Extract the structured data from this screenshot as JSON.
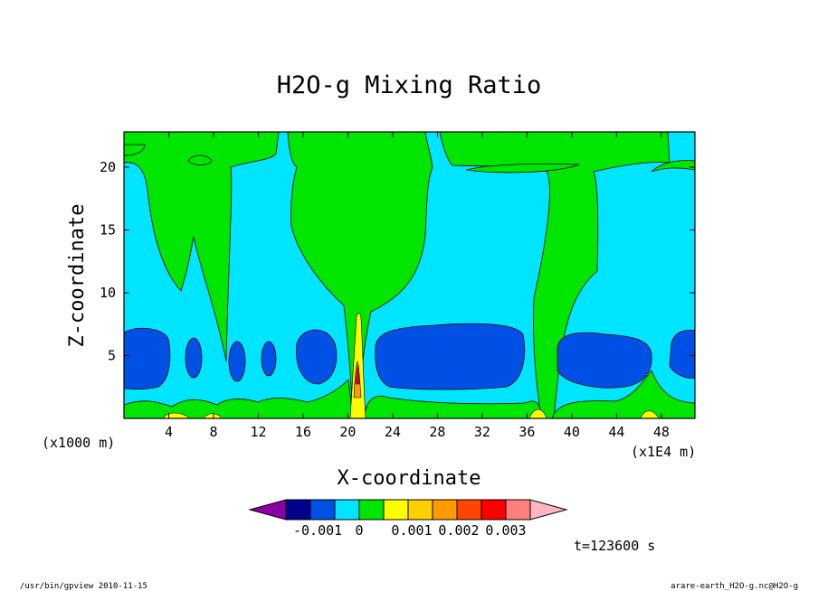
{
  "chart_data": {
    "type": "heatmap",
    "title": "H2O-g Mixing Ratio",
    "xlabel": "X-coordinate",
    "ylabel": "Z-coordinate",
    "x_unit_left": "(x1000 m)",
    "x_unit_right": "(x1E4 m)",
    "xlim": [
      0,
      51
    ],
    "ylim": [
      0,
      22.8
    ],
    "x_ticks": [
      4,
      8,
      12,
      16,
      20,
      24,
      28,
      32,
      36,
      40,
      44,
      48
    ],
    "y_ticks": [
      5,
      10,
      15,
      20
    ],
    "colorbar": {
      "colors": [
        "#8b00a3",
        "#00008b",
        "#0050e6",
        "#00e5ff",
        "#00e600",
        "#ffff00",
        "#ffd000",
        "#ff9a00",
        "#ff4500",
        "#ff0000",
        "#ff7f7f",
        "#ffb6c1"
      ],
      "tick_labels": [
        "-0.001",
        "0",
        "0.001",
        "0.002",
        "0.003"
      ]
    },
    "time_label": "t=123600 s"
  },
  "footer": {
    "left": "/usr/bin/gpview   2010-11-15",
    "right": "arare-earth_H2O-g.nc@H2O-g"
  }
}
